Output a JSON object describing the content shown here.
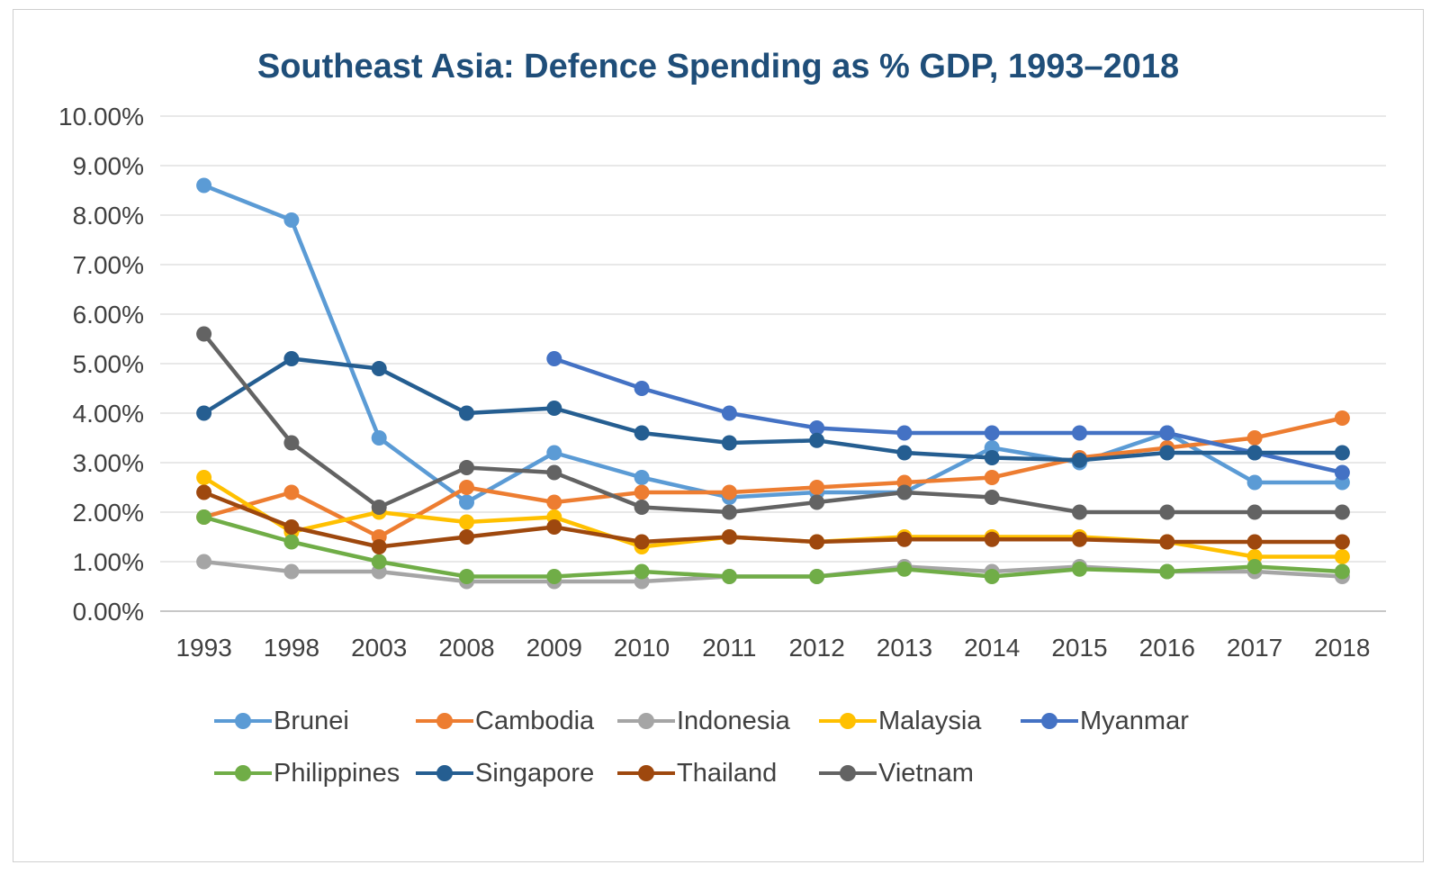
{
  "frame": {
    "background": "#FFFFFF",
    "border_color": "#CFCFCF"
  },
  "chart_data": {
    "type": "line",
    "title": "Southeast Asia: Defence Spending as % GDP, 1993–2018",
    "title_color": "#1F4E79",
    "xlabel": "",
    "ylabel": "",
    "ylim": [
      0,
      10
    ],
    "y_tick_step": 1,
    "grid": true,
    "gridline_color": "#D9D9D9",
    "axis_line_color": "#BFBFBF",
    "axis_text_color": "#404040",
    "legend_position": "bottom",
    "marker": "circle",
    "y_ticks": [
      "10.00%",
      "9.00%",
      "8.00%",
      "7.00%",
      "6.00%",
      "5.00%",
      "4.00%",
      "3.00%",
      "2.00%",
      "1.00%",
      "0.00%"
    ],
    "categories": [
      "1993",
      "1998",
      "2003",
      "2008",
      "2009",
      "2010",
      "2011",
      "2012",
      "2013",
      "2014",
      "2015",
      "2016",
      "2017",
      "2018"
    ],
    "series": [
      {
        "name": "Brunei",
        "color": "#5B9BD5",
        "values": [
          8.6,
          7.9,
          3.5,
          2.2,
          3.2,
          2.7,
          2.3,
          2.4,
          2.4,
          3.3,
          3.0,
          3.6,
          2.6,
          2.6
        ]
      },
      {
        "name": "Cambodia",
        "color": "#ED7D31",
        "values": [
          1.9,
          2.4,
          1.5,
          2.5,
          2.2,
          2.4,
          2.4,
          2.5,
          2.6,
          2.7,
          3.1,
          3.3,
          3.5,
          3.9
        ]
      },
      {
        "name": "Indonesia",
        "color": "#A5A5A5",
        "values": [
          1.0,
          0.8,
          0.8,
          0.6,
          0.6,
          0.6,
          0.7,
          0.7,
          0.9,
          0.8,
          0.9,
          0.8,
          0.8,
          0.7
        ]
      },
      {
        "name": "Malaysia",
        "color": "#FFC000",
        "values": [
          2.7,
          1.6,
          2.0,
          1.8,
          1.9,
          1.3,
          1.5,
          1.4,
          1.5,
          1.5,
          1.5,
          1.4,
          1.1,
          1.1
        ]
      },
      {
        "name": "Myanmar",
        "color": "#4472C4",
        "values": [
          null,
          null,
          null,
          null,
          5.1,
          4.5,
          4.0,
          3.7,
          3.6,
          3.6,
          3.6,
          3.6,
          3.2,
          2.8
        ]
      },
      {
        "name": "Philippines",
        "color": "#70AD47",
        "values": [
          1.9,
          1.4,
          1.0,
          0.7,
          0.7,
          0.8,
          0.7,
          0.7,
          0.85,
          0.7,
          0.85,
          0.8,
          0.9,
          0.8
        ]
      },
      {
        "name": "Singapore",
        "color": "#255E91",
        "values": [
          4.0,
          5.1,
          4.9,
          4.0,
          4.1,
          3.6,
          3.4,
          3.45,
          3.2,
          3.1,
          3.05,
          3.2,
          3.2,
          3.2
        ]
      },
      {
        "name": "Thailand",
        "color": "#9E480E",
        "values": [
          2.4,
          1.7,
          1.3,
          1.5,
          1.7,
          1.4,
          1.5,
          1.4,
          1.45,
          1.45,
          1.45,
          1.4,
          1.4,
          1.4
        ]
      },
      {
        "name": "Vietnam",
        "color": "#636363",
        "values": [
          5.6,
          3.4,
          2.1,
          2.9,
          2.8,
          2.1,
          2.0,
          2.2,
          2.4,
          2.3,
          2.0,
          2.0,
          2.0,
          2.0
        ]
      }
    ],
    "legend_rows": [
      5,
      4
    ]
  }
}
